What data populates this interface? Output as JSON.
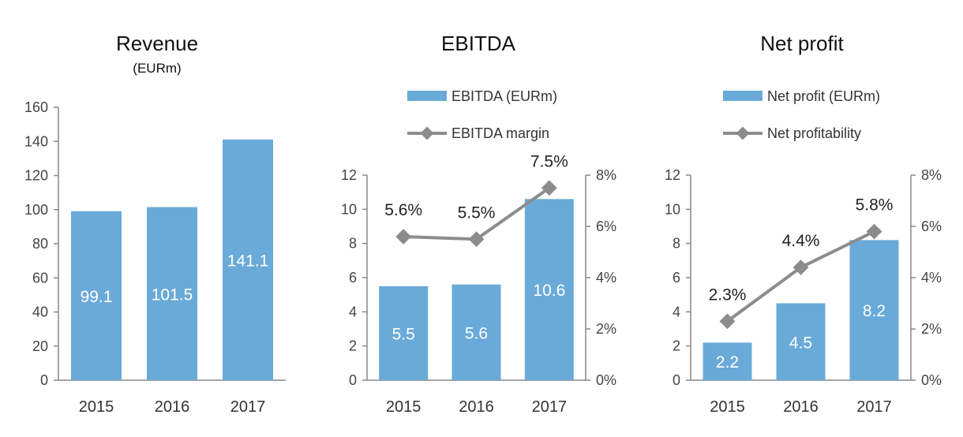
{
  "colors": {
    "bar": "#6aaad9",
    "line": "#8c8c8c",
    "axis": "#888888"
  },
  "chart_data": [
    {
      "type": "bar",
      "title": "Revenue",
      "subtitle": "(EURm)",
      "categories": [
        "2015",
        "2016",
        "2017"
      ],
      "series": [
        {
          "values": [
            99.1,
            101.5,
            141.1
          ]
        }
      ],
      "value_labels": [
        "99.1",
        "101.5",
        "141.1"
      ],
      "ylim": [
        0,
        160
      ],
      "yticks": [
        "0",
        "20",
        "40",
        "60",
        "80",
        "100",
        "120",
        "140",
        "160"
      ],
      "grid": false
    },
    {
      "type": "bar",
      "title": "EBITDA",
      "categories": [
        "2015",
        "2016",
        "2017"
      ],
      "series": [
        {
          "name": "EBITDA (EURm)",
          "type": "bar",
          "axis": "left",
          "values": [
            5.5,
            5.6,
            10.6
          ]
        },
        {
          "name": "EBITDA margin",
          "type": "line",
          "axis": "right",
          "values": [
            0.056,
            0.055,
            0.075
          ]
        }
      ],
      "bar_labels": [
        "5.5",
        "5.6",
        "10.6"
      ],
      "line_labels": [
        "5.6%",
        "5.5%",
        "7.5%"
      ],
      "ylim": [
        0,
        12
      ],
      "y2lim": [
        0,
        0.08
      ],
      "yticks": [
        "0",
        "2",
        "4",
        "6",
        "8",
        "10",
        "12"
      ],
      "y2ticks": [
        "0%",
        "2%",
        "4%",
        "6%",
        "8%"
      ],
      "legend": "top",
      "grid": false
    },
    {
      "type": "bar",
      "title": "Net profit",
      "categories": [
        "2015",
        "2016",
        "2017"
      ],
      "series": [
        {
          "name": "Net profit (EURm)",
          "type": "bar",
          "axis": "left",
          "values": [
            2.2,
            4.5,
            8.2
          ]
        },
        {
          "name": "Net profitability",
          "type": "line",
          "axis": "right",
          "values": [
            0.023,
            0.044,
            0.058
          ]
        }
      ],
      "bar_labels": [
        "2.2",
        "4.5",
        "8.2"
      ],
      "line_labels": [
        "2.3%",
        "4.4%",
        "5.8%"
      ],
      "ylim": [
        0,
        12
      ],
      "y2lim": [
        0,
        0.08
      ],
      "yticks": [
        "0",
        "2",
        "4",
        "6",
        "8",
        "10",
        "12"
      ],
      "y2ticks": [
        "0%",
        "2%",
        "4%",
        "6%",
        "8%"
      ],
      "legend": "top",
      "grid": false
    }
  ]
}
